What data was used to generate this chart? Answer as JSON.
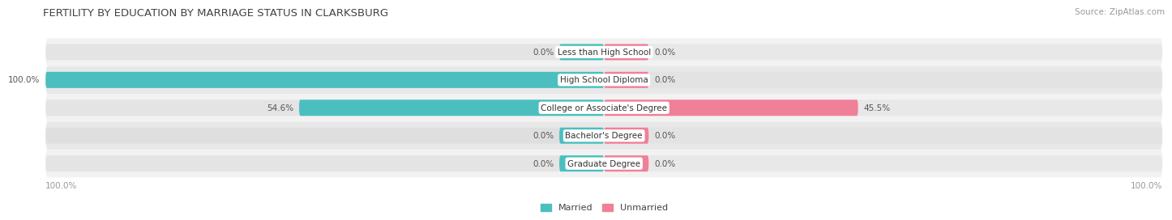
{
  "title": "FERTILITY BY EDUCATION BY MARRIAGE STATUS IN CLARKSBURG",
  "source": "Source: ZipAtlas.com",
  "categories": [
    "Less than High School",
    "High School Diploma",
    "College or Associate's Degree",
    "Bachelor's Degree",
    "Graduate Degree"
  ],
  "married": [
    0.0,
    100.0,
    54.6,
    0.0,
    0.0
  ],
  "unmarried": [
    0.0,
    0.0,
    45.5,
    0.0,
    0.0
  ],
  "married_color": "#4BBFBF",
  "unmarried_color": "#F08098",
  "bar_bg_color_left": "#D8D8D8",
  "bar_bg_color_right": "#E0E0E0",
  "row_bg_odd": "#F2F2F2",
  "row_bg_even": "#E8E8E8",
  "label_bg_color": "#FFFFFF",
  "value_color": "#555555",
  "title_color": "#444444",
  "source_color": "#999999",
  "axis_label_color": "#999999",
  "max_val": 100.0,
  "bar_height": 0.58,
  "stub_val": 8.0,
  "title_fontsize": 9.5,
  "source_fontsize": 7.5,
  "cat_fontsize": 7.5,
  "value_fontsize": 7.5,
  "legend_fontsize": 8,
  "axis_fontsize": 7.5
}
